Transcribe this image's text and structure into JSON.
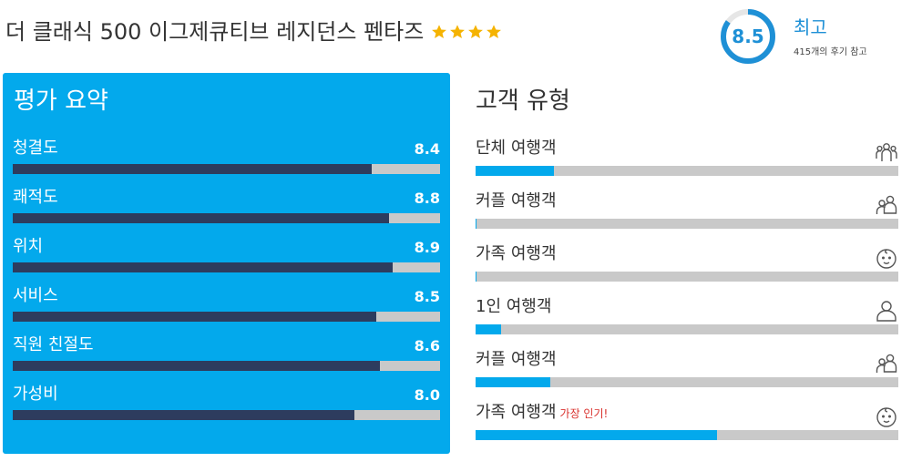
{
  "hotel": {
    "name": "더 클래식 500 이그제큐티브 레지던스 펜타즈",
    "stars": 4,
    "star_color": "#f5b301"
  },
  "score": {
    "value": "8.5",
    "numeric": 8.5,
    "max": 10,
    "label": "최고",
    "reviews": "415개의 후기 참고",
    "accent_color": "#1e90d6"
  },
  "summary": {
    "title": "평가 요약",
    "panel_color": "#03a9ec",
    "items": [
      {
        "label": "청결도",
        "value": "8.4",
        "score": 8.4
      },
      {
        "label": "쾌적도",
        "value": "8.8",
        "score": 8.8
      },
      {
        "label": "위치",
        "value": "8.9",
        "score": 8.9
      },
      {
        "label": "서비스",
        "value": "8.5",
        "score": 8.5
      },
      {
        "label": "직원 친절도",
        "value": "8.6",
        "score": 8.6
      },
      {
        "label": "가성비",
        "value": "8.0",
        "score": 8.0
      }
    ]
  },
  "travelers": {
    "title": "고객 유형",
    "items": [
      {
        "label": "단체 여행객",
        "share": 0.185,
        "icon": "group-icon",
        "note": ""
      },
      {
        "label": "커플 여행객",
        "share": 0.003,
        "icon": "couple-icon",
        "note": ""
      },
      {
        "label": "가족 여행객",
        "share": 0.003,
        "icon": "baby-icon",
        "note": ""
      },
      {
        "label": "1인 여행객",
        "share": 0.06,
        "icon": "person-icon",
        "note": ""
      },
      {
        "label": "커플 여행객",
        "share": 0.176,
        "icon": "couple-icon",
        "note": ""
      },
      {
        "label": "가족 여행객",
        "share": 0.571,
        "icon": "baby-icon",
        "note": "가장 인기!"
      }
    ]
  }
}
